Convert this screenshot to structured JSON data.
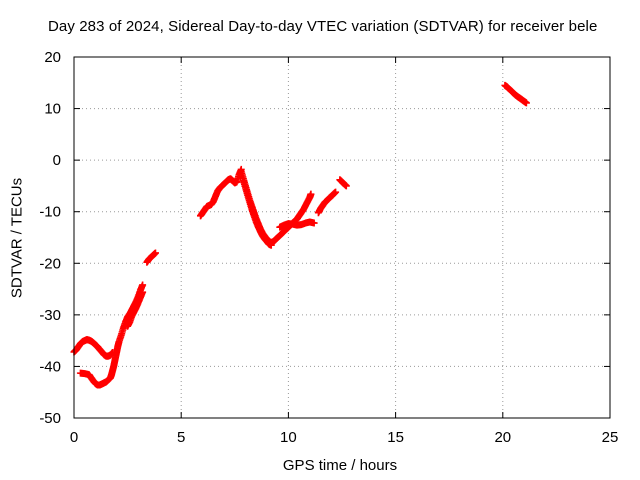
{
  "chart_data": {
    "type": "scatter",
    "title": "Day 283 of 2024, Sidereal Day-to-day VTEC variation (SDTVAR) for receiver bele",
    "xlabel": "GPS time / hours",
    "ylabel": "SDTVAR / TECUs",
    "xlim": [
      0,
      25
    ],
    "ylim": [
      -50,
      20
    ],
    "xticks": [
      0,
      5,
      10,
      15,
      20,
      25
    ],
    "yticks": [
      -50,
      -40,
      -30,
      -20,
      -10,
      0,
      10,
      20
    ],
    "grid": true,
    "marker": "+",
    "series": [
      {
        "name": "SDTVAR",
        "color": "#ff0000",
        "segments": [
          [
            [
              0.0,
              -37.2
            ],
            [
              0.1,
              -36.8
            ],
            [
              0.2,
              -36.2
            ],
            [
              0.3,
              -35.6
            ],
            [
              0.4,
              -35.2
            ],
            [
              0.5,
              -35.0
            ],
            [
              0.6,
              -34.8
            ],
            [
              0.7,
              -34.9
            ],
            [
              0.8,
              -35.1
            ],
            [
              0.9,
              -35.4
            ],
            [
              1.0,
              -35.8
            ],
            [
              1.1,
              -36.2
            ],
            [
              1.2,
              -36.7
            ],
            [
              1.3,
              -37.2
            ],
            [
              1.4,
              -37.7
            ],
            [
              1.5,
              -38.0
            ],
            [
              1.6,
              -38.0
            ],
            [
              1.7,
              -37.8
            ],
            [
              1.8,
              -37.3
            ]
          ],
          [
            [
              0.3,
              -41.3
            ],
            [
              0.5,
              -41.4
            ],
            [
              0.7,
              -41.6
            ],
            [
              0.8,
              -42.2
            ],
            [
              0.9,
              -42.8
            ],
            [
              1.0,
              -43.3
            ],
            [
              1.1,
              -43.6
            ],
            [
              1.2,
              -43.6
            ],
            [
              1.3,
              -43.4
            ],
            [
              1.4,
              -43.2
            ],
            [
              1.5,
              -43.0
            ],
            [
              1.6,
              -42.6
            ],
            [
              1.7,
              -42.2
            ],
            [
              1.75,
              -41.6
            ],
            [
              1.8,
              -40.8
            ],
            [
              1.85,
              -40.0
            ],
            [
              1.9,
              -39.0
            ],
            [
              1.95,
              -38.0
            ],
            [
              2.0,
              -37.0
            ],
            [
              2.05,
              -36.0
            ],
            [
              2.1,
              -35.2
            ],
            [
              2.2,
              -34.0
            ],
            [
              2.3,
              -32.6
            ],
            [
              2.4,
              -31.4
            ],
            [
              2.5,
              -30.4
            ],
            [
              2.6,
              -29.8
            ],
            [
              2.7,
              -29.0
            ],
            [
              2.8,
              -28.2
            ],
            [
              2.9,
              -27.4
            ],
            [
              3.0,
              -26.4
            ],
            [
              3.1,
              -25.2
            ],
            [
              3.2,
              -24.2
            ]
          ],
          [
            [
              2.5,
              -32.2
            ],
            [
              2.6,
              -31.4
            ],
            [
              2.7,
              -30.2
            ],
            [
              2.8,
              -29.4
            ],
            [
              2.9,
              -28.6
            ],
            [
              3.0,
              -27.6
            ],
            [
              3.1,
              -26.6
            ],
            [
              3.2,
              -25.6
            ]
          ],
          [
            [
              3.4,
              -19.8
            ],
            [
              3.5,
              -19.2
            ],
            [
              3.6,
              -18.8
            ],
            [
              3.7,
              -18.4
            ],
            [
              3.8,
              -18.0
            ]
          ],
          [
            [
              5.9,
              -10.8
            ],
            [
              6.0,
              -10.2
            ],
            [
              6.1,
              -9.6
            ],
            [
              6.2,
              -9.0
            ],
            [
              6.3,
              -8.8
            ],
            [
              6.4,
              -8.6
            ],
            [
              6.5,
              -8.0
            ],
            [
              6.6,
              -7.0
            ],
            [
              6.7,
              -6.0
            ],
            [
              6.8,
              -5.4
            ],
            [
              6.9,
              -5.0
            ],
            [
              7.0,
              -4.6
            ],
            [
              7.1,
              -4.2
            ],
            [
              7.2,
              -3.8
            ],
            [
              7.3,
              -3.6
            ],
            [
              7.4,
              -4.0
            ],
            [
              7.5,
              -4.4
            ],
            [
              7.6,
              -4.2
            ],
            [
              7.7,
              -2.8
            ],
            [
              7.8,
              -1.8
            ]
          ],
          [
            [
              7.8,
              -2.2
            ],
            [
              7.9,
              -3.6
            ],
            [
              8.0,
              -5.0
            ],
            [
              8.1,
              -6.4
            ],
            [
              8.2,
              -7.8
            ],
            [
              8.3,
              -9.0
            ],
            [
              8.4,
              -10.2
            ],
            [
              8.5,
              -11.4
            ],
            [
              8.6,
              -12.4
            ],
            [
              8.7,
              -13.4
            ],
            [
              8.8,
              -14.2
            ],
            [
              8.9,
              -14.8
            ],
            [
              9.0,
              -15.3
            ],
            [
              9.1,
              -15.8
            ],
            [
              9.2,
              -16.0
            ],
            [
              9.3,
              -15.8
            ],
            [
              9.4,
              -15.4
            ],
            [
              9.5,
              -15.0
            ],
            [
              9.6,
              -14.6
            ],
            [
              9.7,
              -14.2
            ],
            [
              9.8,
              -13.8
            ],
            [
              9.9,
              -13.4
            ],
            [
              10.0,
              -13.0
            ],
            [
              10.1,
              -12.6
            ],
            [
              10.2,
              -12.2
            ],
            [
              10.3,
              -11.8
            ],
            [
              10.4,
              -11.4
            ],
            [
              10.5,
              -10.8
            ],
            [
              10.6,
              -10.2
            ],
            [
              10.7,
              -9.6
            ],
            [
              10.8,
              -8.8
            ],
            [
              10.9,
              -8.0
            ],
            [
              11.0,
              -7.2
            ],
            [
              11.05,
              -6.6
            ]
          ],
          [
            [
              7.9,
              -4.0
            ],
            [
              8.0,
              -5.4
            ],
            [
              8.1,
              -6.8
            ],
            [
              8.2,
              -8.2
            ],
            [
              8.3,
              -9.6
            ],
            [
              8.4,
              -10.8
            ],
            [
              8.5,
              -12.0
            ],
            [
              8.6,
              -13.0
            ],
            [
              8.7,
              -13.9
            ],
            [
              8.8,
              -14.7
            ],
            [
              8.9,
              -15.3
            ],
            [
              9.0,
              -15.8
            ],
            [
              9.1,
              -16.3
            ],
            [
              9.2,
              -16.5
            ]
          ],
          [
            [
              9.6,
              -13.0
            ],
            [
              9.8,
              -12.6
            ],
            [
              10.0,
              -12.3
            ],
            [
              10.2,
              -12.4
            ],
            [
              10.4,
              -12.6
            ],
            [
              10.6,
              -12.5
            ],
            [
              10.8,
              -12.2
            ],
            [
              11.0,
              -12.0
            ],
            [
              11.2,
              -12.2
            ]
          ],
          [
            [
              11.4,
              -10.2
            ],
            [
              11.5,
              -9.4
            ],
            [
              11.6,
              -8.8
            ],
            [
              11.7,
              -8.2
            ],
            [
              11.8,
              -7.8
            ],
            [
              11.9,
              -7.4
            ],
            [
              12.0,
              -7.0
            ],
            [
              12.1,
              -6.6
            ],
            [
              12.2,
              -6.2
            ]
          ],
          [
            [
              12.4,
              -3.8
            ],
            [
              12.5,
              -4.2
            ],
            [
              12.6,
              -4.6
            ],
            [
              12.7,
              -5.0
            ]
          ],
          [
            [
              20.1,
              14.5
            ],
            [
              20.2,
              14.2
            ],
            [
              20.3,
              13.8
            ],
            [
              20.4,
              13.4
            ],
            [
              20.5,
              13.0
            ],
            [
              20.6,
              12.6
            ],
            [
              20.7,
              12.3
            ],
            [
              20.8,
              12.0
            ],
            [
              20.9,
              11.7
            ],
            [
              21.0,
              11.4
            ],
            [
              21.1,
              11.1
            ]
          ]
        ]
      }
    ]
  }
}
